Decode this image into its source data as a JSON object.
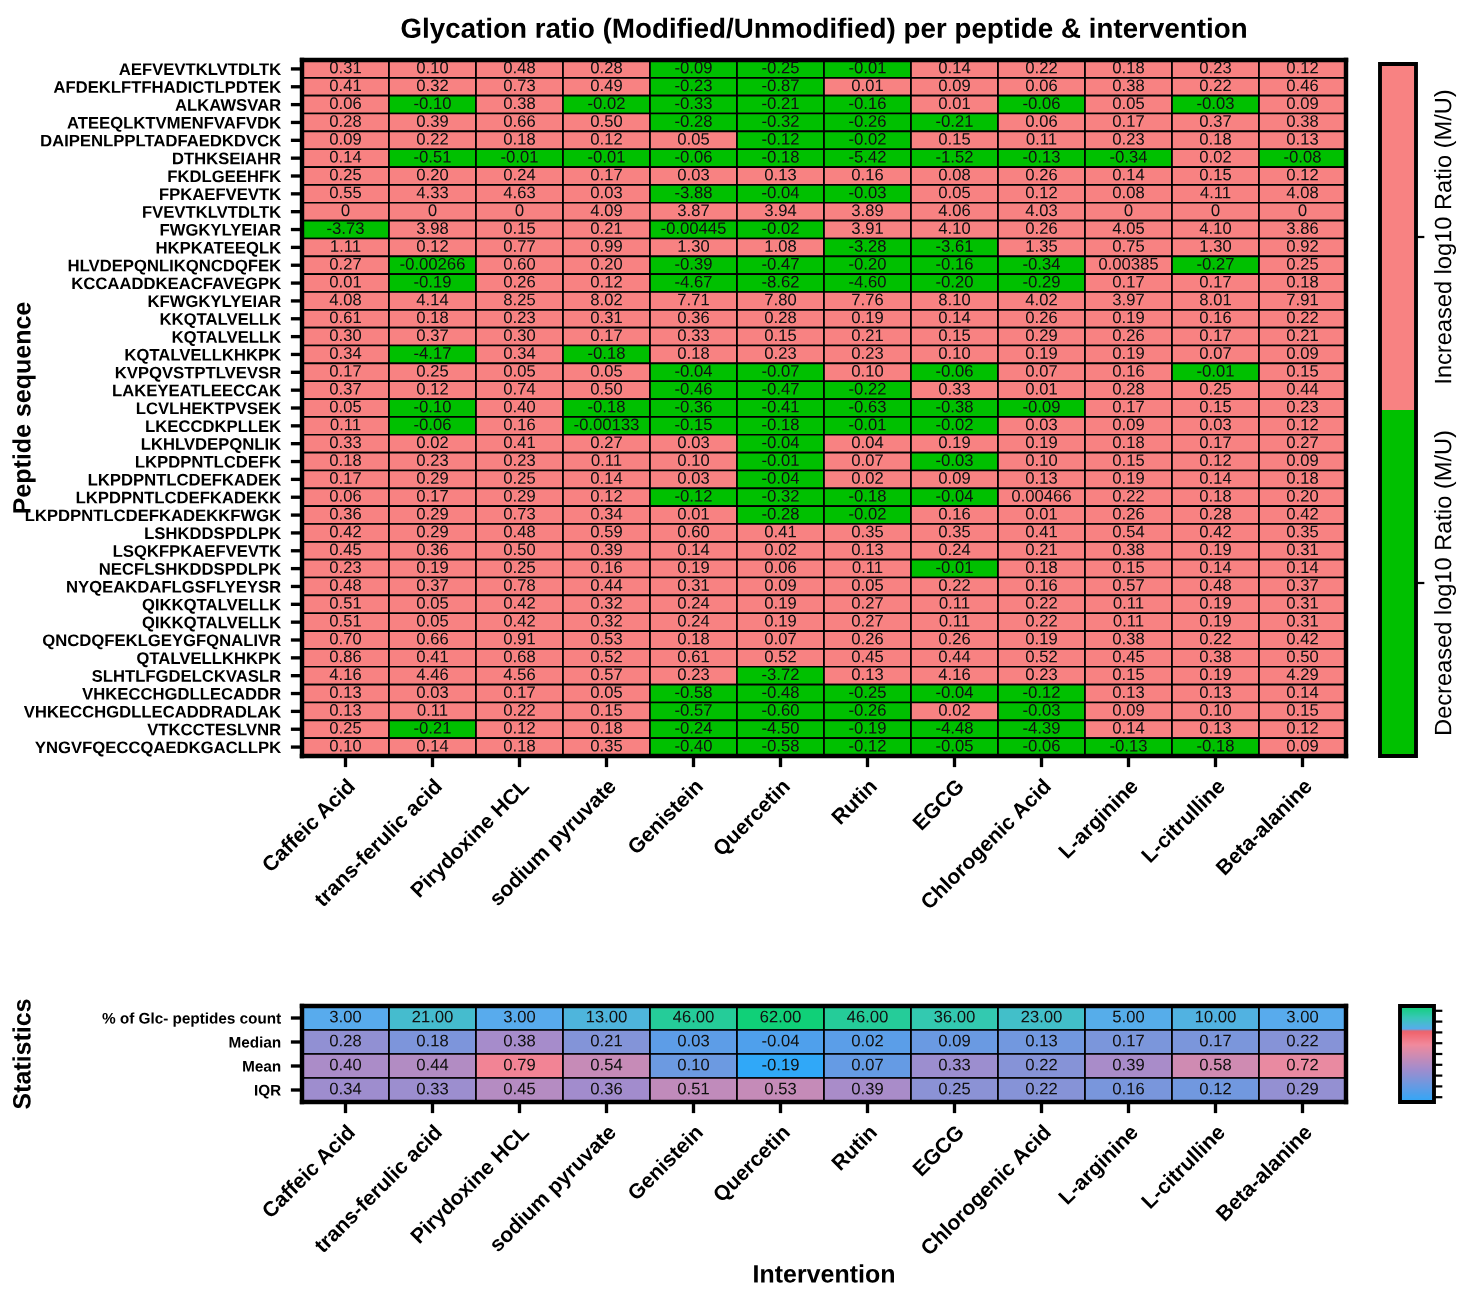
{
  "chart_data": [
    {
      "type": "heatmap",
      "title": "Glycation ratio (Modified/Unmodified) per peptide & intervention",
      "ylabel": "Peptide sequence",
      "categories": [
        "Caffeic Acid",
        "trans-ferulic acid",
        "Pirydoxine HCL",
        "sodium pyruvate",
        "Genistein",
        "Quercetin",
        "Rutin",
        "EGCG",
        "Chlorogenic Acid",
        "L-arginine",
        "L-citrulline",
        "Beta-alanine"
      ],
      "y_categories": [
        "AEFVEVTKLVTDLTK",
        "AFDEKLFTFHADICTLPDTEK",
        "ALKAWSVAR",
        "ATEEQLKTVMENFVAFVDK",
        "DAIPENLPPLTADFAEDKDVCK",
        "DTHKSEIAHR",
        "FKDLGEEHFK",
        "FPKAEFVEVTK",
        "FVEVTKLVTDLTK",
        "FWGKYLYEIAR",
        "HKPKATEEQLK",
        "HLVDEPQNLIKQNCDQFEK",
        "KCCAADDKEACFAVEGPK",
        "KFWGKYLYEIAR",
        "KKQTALVELLK",
        "KQTALVELLK",
        "KQTALVELLKHKPK",
        "KVPQVSTPTLVEVSR",
        "LAKEYEATLEECCAK",
        "LCVLHEKTPVSEK",
        "LKECCDKPLLEK",
        "LKHLVDEPQNLIK",
        "LKPDPNTLCDEFK",
        "LKPDPNTLCDEFKADEK",
        "LKPDPNTLCDEFKADEKK",
        "LKPDPNTLCDEFKADEKKFWGK",
        "LSHKDDSPDLPK",
        "LSQKFPKAEFVEVTK",
        "NECFLSHKDDSPDLPK",
        "NYQEAKDAFLGSFLYEYSR",
        "QIKKQTALVELLK",
        "QIKKQTALVELLK",
        "QNCDQFEKLGEYGFQNALIVR",
        "QTALVELLKHKPK",
        "SLHTLFGDELCKVASLR",
        "VHKECCHGDLLECADDR",
        "VHKECCHGDLLECADDRADLAK",
        "VTKCCTESLVNR",
        "YNGVFQECCQAEDKGACLLPK"
      ],
      "cells": [
        [
          0.31,
          0.1,
          0.48,
          0.28,
          -0.09,
          -0.25,
          -0.01,
          0.14,
          0.22,
          0.18,
          0.23,
          0.12
        ],
        [
          0.41,
          0.32,
          0.73,
          0.49,
          -0.23,
          -0.87,
          0.01,
          0.09,
          0.06,
          0.38,
          0.22,
          0.46
        ],
        [
          0.06,
          -0.1,
          0.38,
          -0.02,
          -0.33,
          -0.21,
          -0.16,
          0.01,
          -0.06,
          0.05,
          -0.03,
          0.09
        ],
        [
          0.28,
          0.39,
          0.66,
          0.5,
          -0.28,
          -0.32,
          -0.26,
          -0.21,
          0.06,
          0.17,
          0.37,
          0.38
        ],
        [
          0.09,
          0.22,
          0.18,
          0.12,
          0.05,
          -0.12,
          -0.02,
          0.15,
          0.11,
          0.23,
          0.18,
          0.13
        ],
        [
          0.14,
          -0.51,
          -0.01,
          -0.01,
          -0.06,
          -0.18,
          -5.42,
          -1.52,
          -0.13,
          -0.34,
          0.02,
          -0.08
        ],
        [
          0.25,
          0.2,
          0.24,
          0.17,
          0.03,
          0.13,
          0.16,
          0.08,
          0.26,
          0.14,
          0.15,
          0.12
        ],
        [
          0.55,
          4.33,
          4.63,
          0.03,
          -3.88,
          -0.04,
          -0.03,
          0.05,
          0.12,
          0.08,
          4.11,
          4.08
        ],
        [
          0,
          0,
          0,
          4.09,
          3.87,
          3.94,
          3.89,
          4.06,
          4.03,
          0,
          0,
          0
        ],
        [
          -3.73,
          3.98,
          0.15,
          0.21,
          -0.00445,
          -0.02,
          3.91,
          4.1,
          0.26,
          4.05,
          4.1,
          3.86
        ],
        [
          1.11,
          0.12,
          0.77,
          0.99,
          1.3,
          1.08,
          -3.28,
          -3.61,
          1.35,
          0.75,
          1.3,
          0.92
        ],
        [
          0.27,
          -0.00266,
          0.6,
          0.2,
          -0.39,
          -0.47,
          -0.2,
          -0.16,
          -0.34,
          0.00385,
          -0.27,
          0.25
        ],
        [
          0.01,
          -0.19,
          0.26,
          0.12,
          -4.67,
          -8.62,
          -4.6,
          -0.2,
          -0.29,
          0.17,
          0.17,
          0.18
        ],
        [
          4.08,
          4.14,
          8.25,
          8.02,
          7.71,
          7.8,
          7.76,
          8.1,
          4.02,
          3.97,
          8.01,
          7.91
        ],
        [
          0.61,
          0.18,
          0.23,
          0.31,
          0.36,
          0.28,
          0.19,
          0.14,
          0.26,
          0.19,
          0.16,
          0.22
        ],
        [
          0.3,
          0.37,
          0.3,
          0.17,
          0.33,
          0.15,
          0.21,
          0.15,
          0.29,
          0.26,
          0.17,
          0.21
        ],
        [
          0.34,
          -4.17,
          0.34,
          -0.18,
          0.18,
          0.23,
          0.23,
          0.1,
          0.19,
          0.19,
          0.07,
          0.09
        ],
        [
          0.17,
          0.25,
          0.05,
          0.05,
          -0.04,
          -0.07,
          0.1,
          -0.06,
          0.07,
          0.16,
          -0.01,
          0.15
        ],
        [
          0.37,
          0.12,
          0.74,
          0.5,
          -0.46,
          -0.47,
          -0.22,
          0.33,
          0.01,
          0.28,
          0.25,
          0.44
        ],
        [
          0.05,
          -0.1,
          0.4,
          -0.18,
          -0.36,
          -0.41,
          -0.63,
          -0.38,
          -0.09,
          0.17,
          0.15,
          0.23
        ],
        [
          0.11,
          -0.06,
          0.16,
          -0.00133,
          -0.15,
          -0.18,
          -0.01,
          -0.02,
          0.03,
          0.09,
          0.03,
          0.12
        ],
        [
          0.33,
          0.02,
          0.41,
          0.27,
          0.03,
          -0.04,
          0.04,
          0.19,
          0.19,
          0.18,
          0.17,
          0.27
        ],
        [
          0.18,
          0.23,
          0.23,
          0.11,
          0.1,
          -0.01,
          0.07,
          -0.03,
          0.1,
          0.15,
          0.12,
          0.09
        ],
        [
          0.17,
          0.29,
          0.25,
          0.14,
          0.03,
          -0.04,
          0.02,
          0.09,
          0.13,
          0.19,
          0.14,
          0.18
        ],
        [
          0.06,
          0.17,
          0.29,
          0.12,
          -0.12,
          -0.32,
          -0.18,
          -0.04,
          0.00466,
          0.22,
          0.18,
          0.2
        ],
        [
          0.36,
          0.29,
          0.73,
          0.34,
          0.01,
          -0.28,
          -0.02,
          0.16,
          0.01,
          0.26,
          0.28,
          0.42
        ],
        [
          0.42,
          0.29,
          0.48,
          0.59,
          0.6,
          0.41,
          0.35,
          0.35,
          0.41,
          0.54,
          0.42,
          0.35
        ],
        [
          0.45,
          0.36,
          0.5,
          0.39,
          0.14,
          0.02,
          0.13,
          0.24,
          0.21,
          0.38,
          0.19,
          0.31
        ],
        [
          0.23,
          0.19,
          0.25,
          0.16,
          0.19,
          0.06,
          0.11,
          -0.01,
          0.18,
          0.15,
          0.14,
          0.14
        ],
        [
          0.48,
          0.37,
          0.78,
          0.44,
          0.31,
          0.09,
          0.05,
          0.22,
          0.16,
          0.57,
          0.48,
          0.37
        ],
        [
          0.51,
          0.05,
          0.42,
          0.32,
          0.24,
          0.19,
          0.27,
          0.11,
          0.22,
          0.11,
          0.19,
          0.31
        ],
        [
          0.51,
          0.05,
          0.42,
          0.32,
          0.24,
          0.19,
          0.27,
          0.11,
          0.22,
          0.11,
          0.19,
          0.31
        ],
        [
          0.7,
          0.66,
          0.91,
          0.53,
          0.18,
          0.07,
          0.26,
          0.26,
          0.19,
          0.38,
          0.22,
          0.42
        ],
        [
          0.86,
          0.41,
          0.68,
          0.52,
          0.61,
          0.52,
          0.45,
          0.44,
          0.52,
          0.45,
          0.38,
          0.5
        ],
        [
          4.16,
          4.46,
          4.56,
          0.57,
          0.23,
          -3.72,
          0.13,
          4.16,
          0.23,
          0.15,
          0.19,
          4.29
        ],
        [
          0.13,
          0.03,
          0.17,
          0.05,
          -0.58,
          -0.48,
          -0.25,
          -0.04,
          -0.12,
          0.13,
          0.13,
          0.14
        ],
        [
          0.13,
          0.11,
          0.22,
          0.15,
          -0.57,
          -0.6,
          -0.26,
          0.02,
          -0.03,
          0.09,
          0.1,
          0.15
        ],
        [
          0.25,
          -0.21,
          0.12,
          0.18,
          -0.24,
          -4.5,
          -0.19,
          -4.48,
          -4.39,
          0.14,
          0.13,
          0.12
        ],
        [
          0.1,
          0.14,
          0.18,
          0.35,
          -0.4,
          -0.58,
          -0.12,
          -0.05,
          -0.06,
          -0.13,
          -0.18,
          0.09
        ]
      ],
      "cell_labels": [
        [
          "0.31",
          "0.10",
          "0.48",
          "0.28",
          "-0.09",
          "-0.25",
          "-0.01",
          "0.14",
          "0.22",
          "0.18",
          "0.23",
          "0.12"
        ],
        [
          "0.41",
          "0.32",
          "0.73",
          "0.49",
          "-0.23",
          "-0.87",
          "0.01",
          "0.09",
          "0.06",
          "0.38",
          "0.22",
          "0.46"
        ],
        [
          "0.06",
          "-0.10",
          "0.38",
          "-0.02",
          "-0.33",
          "-0.21",
          "-0.16",
          "0.01",
          "-0.06",
          "0.05",
          "-0.03",
          "0.09"
        ],
        [
          "0.28",
          "0.39",
          "0.66",
          "0.50",
          "-0.28",
          "-0.32",
          "-0.26",
          "-0.21",
          "0.06",
          "0.17",
          "0.37",
          "0.38"
        ],
        [
          "0.09",
          "0.22",
          "0.18",
          "0.12",
          "0.05",
          "-0.12",
          "-0.02",
          "0.15",
          "0.11",
          "0.23",
          "0.18",
          "0.13"
        ],
        [
          "0.14",
          "-0.51",
          "-0.01",
          "-0.01",
          "-0.06",
          "-0.18",
          "-5.42",
          "-1.52",
          "-0.13",
          "-0.34",
          "0.02",
          "-0.08"
        ],
        [
          "0.25",
          "0.20",
          "0.24",
          "0.17",
          "0.03",
          "0.13",
          "0.16",
          "0.08",
          "0.26",
          "0.14",
          "0.15",
          "0.12"
        ],
        [
          "0.55",
          "4.33",
          "4.63",
          "0.03",
          "-3.88",
          "-0.04",
          "-0.03",
          "0.05",
          "0.12",
          "0.08",
          "4.11",
          "4.08"
        ],
        [
          "0",
          "0",
          "0",
          "4.09",
          "3.87",
          "3.94",
          "3.89",
          "4.06",
          "4.03",
          "0",
          "0",
          "0"
        ],
        [
          "-3.73",
          "3.98",
          "0.15",
          "0.21",
          "-0.00445",
          "-0.02",
          "3.91",
          "4.10",
          "0.26",
          "4.05",
          "4.10",
          "3.86"
        ],
        [
          "1.11",
          "0.12",
          "0.77",
          "0.99",
          "1.30",
          "1.08",
          "-3.28",
          "-3.61",
          "1.35",
          "0.75",
          "1.30",
          "0.92"
        ],
        [
          "0.27",
          "-0.00266",
          "0.60",
          "0.20",
          "-0.39",
          "-0.47",
          "-0.20",
          "-0.16",
          "-0.34",
          "0.00385",
          "-0.27",
          "0.25"
        ],
        [
          "0.01",
          "-0.19",
          "0.26",
          "0.12",
          "-4.67",
          "-8.62",
          "-4.60",
          "-0.20",
          "-0.29",
          "0.17",
          "0.17",
          "0.18"
        ],
        [
          "4.08",
          "4.14",
          "8.25",
          "8.02",
          "7.71",
          "7.80",
          "7.76",
          "8.10",
          "4.02",
          "3.97",
          "8.01",
          "7.91"
        ],
        [
          "0.61",
          "0.18",
          "0.23",
          "0.31",
          "0.36",
          "0.28",
          "0.19",
          "0.14",
          "0.26",
          "0.19",
          "0.16",
          "0.22"
        ],
        [
          "0.30",
          "0.37",
          "0.30",
          "0.17",
          "0.33",
          "0.15",
          "0.21",
          "0.15",
          "0.29",
          "0.26",
          "0.17",
          "0.21"
        ],
        [
          "0.34",
          "-4.17",
          "0.34",
          "-0.18",
          "0.18",
          "0.23",
          "0.23",
          "0.10",
          "0.19",
          "0.19",
          "0.07",
          "0.09"
        ],
        [
          "0.17",
          "0.25",
          "0.05",
          "0.05",
          "-0.04",
          "-0.07",
          "0.10",
          "-0.06",
          "0.07",
          "0.16",
          "-0.01",
          "0.15"
        ],
        [
          "0.37",
          "0.12",
          "0.74",
          "0.50",
          "-0.46",
          "-0.47",
          "-0.22",
          "0.33",
          "0.01",
          "0.28",
          "0.25",
          "0.44"
        ],
        [
          "0.05",
          "-0.10",
          "0.40",
          "-0.18",
          "-0.36",
          "-0.41",
          "-0.63",
          "-0.38",
          "-0.09",
          "0.17",
          "0.15",
          "0.23"
        ],
        [
          "0.11",
          "-0.06",
          "0.16",
          "-0.00133",
          "-0.15",
          "-0.18",
          "-0.01",
          "-0.02",
          "0.03",
          "0.09",
          "0.03",
          "0.12"
        ],
        [
          "0.33",
          "0.02",
          "0.41",
          "0.27",
          "0.03",
          "-0.04",
          "0.04",
          "0.19",
          "0.19",
          "0.18",
          "0.17",
          "0.27"
        ],
        [
          "0.18",
          "0.23",
          "0.23",
          "0.11",
          "0.10",
          "-0.01",
          "0.07",
          "-0.03",
          "0.10",
          "0.15",
          "0.12",
          "0.09"
        ],
        [
          "0.17",
          "0.29",
          "0.25",
          "0.14",
          "0.03",
          "-0.04",
          "0.02",
          "0.09",
          "0.13",
          "0.19",
          "0.14",
          "0.18"
        ],
        [
          "0.06",
          "0.17",
          "0.29",
          "0.12",
          "-0.12",
          "-0.32",
          "-0.18",
          "-0.04",
          "0.00466",
          "0.22",
          "0.18",
          "0.20"
        ],
        [
          "0.36",
          "0.29",
          "0.73",
          "0.34",
          "0.01",
          "-0.28",
          "-0.02",
          "0.16",
          "0.01",
          "0.26",
          "0.28",
          "0.42"
        ],
        [
          "0.42",
          "0.29",
          "0.48",
          "0.59",
          "0.60",
          "0.41",
          "0.35",
          "0.35",
          "0.41",
          "0.54",
          "0.42",
          "0.35"
        ],
        [
          "0.45",
          "0.36",
          "0.50",
          "0.39",
          "0.14",
          "0.02",
          "0.13",
          "0.24",
          "0.21",
          "0.38",
          "0.19",
          "0.31"
        ],
        [
          "0.23",
          "0.19",
          "0.25",
          "0.16",
          "0.19",
          "0.06",
          "0.11",
          "-0.01",
          "0.18",
          "0.15",
          "0.14",
          "0.14"
        ],
        [
          "0.48",
          "0.37",
          "0.78",
          "0.44",
          "0.31",
          "0.09",
          "0.05",
          "0.22",
          "0.16",
          "0.57",
          "0.48",
          "0.37"
        ],
        [
          "0.51",
          "0.05",
          "0.42",
          "0.32",
          "0.24",
          "0.19",
          "0.27",
          "0.11",
          "0.22",
          "0.11",
          "0.19",
          "0.31"
        ],
        [
          "0.51",
          "0.05",
          "0.42",
          "0.32",
          "0.24",
          "0.19",
          "0.27",
          "0.11",
          "0.22",
          "0.11",
          "0.19",
          "0.31"
        ],
        [
          "0.70",
          "0.66",
          "0.91",
          "0.53",
          "0.18",
          "0.07",
          "0.26",
          "0.26",
          "0.19",
          "0.38",
          "0.22",
          "0.42"
        ],
        [
          "0.86",
          "0.41",
          "0.68",
          "0.52",
          "0.61",
          "0.52",
          "0.45",
          "0.44",
          "0.52",
          "0.45",
          "0.38",
          "0.50"
        ],
        [
          "4.16",
          "4.46",
          "4.56",
          "0.57",
          "0.23",
          "-3.72",
          "0.13",
          "4.16",
          "0.23",
          "0.15",
          "0.19",
          "4.29"
        ],
        [
          "0.13",
          "0.03",
          "0.17",
          "0.05",
          "-0.58",
          "-0.48",
          "-0.25",
          "-0.04",
          "-0.12",
          "0.13",
          "0.13",
          "0.14"
        ],
        [
          "0.13",
          "0.11",
          "0.22",
          "0.15",
          "-0.57",
          "-0.60",
          "-0.26",
          "0.02",
          "-0.03",
          "0.09",
          "0.10",
          "0.15"
        ],
        [
          "0.25",
          "-0.21",
          "0.12",
          "0.18",
          "-0.24",
          "-4.50",
          "-0.19",
          "-4.48",
          "-4.39",
          "0.14",
          "0.13",
          "0.12"
        ],
        [
          "0.10",
          "0.14",
          "0.18",
          "0.35",
          "-0.40",
          "-0.58",
          "-0.12",
          "-0.05",
          "-0.06",
          "-0.13",
          "-0.18",
          "0.09"
        ]
      ],
      "clim": [
        -1,
        1
      ],
      "cticks": [
        {
          "value": -0.5,
          "label": "Decreased log10 Ratio (M/U)"
        },
        {
          "value": 0.5,
          "label": "Increased log10 Ratio (M/U)"
        }
      ]
    },
    {
      "type": "heatmap",
      "ylabel": "Statistics",
      "xlabel": "Intervention",
      "categories": [
        "Caffeic Acid",
        "trans-ferulic acid",
        "Pirydoxine HCL",
        "sodium pyruvate",
        "Genistein",
        "Quercetin",
        "Rutin",
        "EGCG",
        "Chlorogenic Acid",
        "L-arginine",
        "L-citrulline",
        "Beta-alanine"
      ],
      "y_categories": [
        "% of Glc- peptides count",
        "Median",
        "Mean",
        "IQR"
      ],
      "cells": [
        [
          3.0,
          21.0,
          3.0,
          13.0,
          46.0,
          62.0,
          46.0,
          36.0,
          23.0,
          5.0,
          10.0,
          3.0
        ],
        [
          0.28,
          0.18,
          0.38,
          0.21,
          0.03,
          -0.04,
          0.02,
          0.09,
          0.13,
          0.17,
          0.17,
          0.22
        ],
        [
          0.4,
          0.44,
          0.79,
          0.54,
          0.1,
          -0.19,
          0.07,
          0.33,
          0.22,
          0.39,
          0.58,
          0.72
        ],
        [
          0.34,
          0.33,
          0.45,
          0.36,
          0.51,
          0.53,
          0.39,
          0.25,
          0.22,
          0.16,
          0.12,
          0.29
        ]
      ],
      "cell_labels": [
        [
          "3.00",
          "21.00",
          "3.00",
          "13.00",
          "46.00",
          "62.00",
          "46.00",
          "36.00",
          "23.00",
          "5.00",
          "10.00",
          "3.00"
        ],
        [
          "0.28",
          "0.18",
          "0.38",
          "0.21",
          "0.03",
          "-0.04",
          "0.02",
          "0.09",
          "0.13",
          "0.17",
          "0.17",
          "0.22"
        ],
        [
          "0.40",
          "0.44",
          "0.79",
          "0.54",
          "0.10",
          "-0.19",
          "0.07",
          "0.33",
          "0.22",
          "0.39",
          "0.58",
          "0.72"
        ],
        [
          "0.34",
          "0.33",
          "0.45",
          "0.36",
          "0.51",
          "0.53",
          "0.39",
          "0.25",
          "0.22",
          "0.16",
          "0.12",
          "0.29"
        ]
      ]
    }
  ]
}
